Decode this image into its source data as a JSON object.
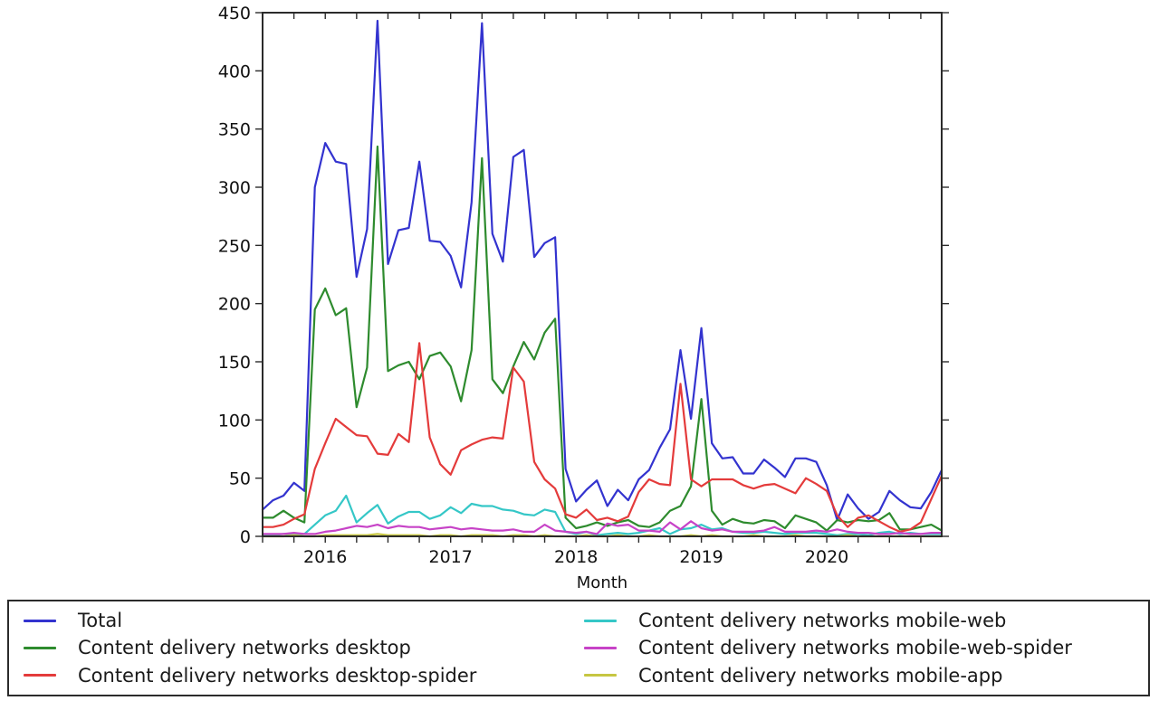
{
  "figure": {
    "background": "#ffffff",
    "spine_color": "#2b2b2b",
    "text_color": "#1a1a1a"
  },
  "chart_data": {
    "type": "line",
    "title": "",
    "xlabel": "Month",
    "ylabel": "",
    "ylim": [
      0,
      450
    ],
    "yticks": [
      0,
      50,
      100,
      150,
      200,
      250,
      300,
      350,
      400,
      450
    ],
    "grid": false,
    "legend_position": "bottom",
    "xticks": [
      {
        "label": "2016",
        "month_index": 6
      },
      {
        "label": "2017",
        "month_index": 18
      },
      {
        "label": "2018",
        "month_index": 30
      },
      {
        "label": "2019",
        "month_index": 42
      },
      {
        "label": "2020",
        "month_index": 54
      }
    ],
    "months": [
      "2015-07",
      "2015-08",
      "2015-09",
      "2015-10",
      "2015-11",
      "2015-12",
      "2016-01",
      "2016-02",
      "2016-03",
      "2016-04",
      "2016-05",
      "2016-06",
      "2016-07",
      "2016-08",
      "2016-09",
      "2016-10",
      "2016-11",
      "2016-12",
      "2017-01",
      "2017-02",
      "2017-03",
      "2017-04",
      "2017-05",
      "2017-06",
      "2017-07",
      "2017-08",
      "2017-09",
      "2017-10",
      "2017-11",
      "2017-12",
      "2018-01",
      "2018-02",
      "2018-03",
      "2018-04",
      "2018-05",
      "2018-06",
      "2018-07",
      "2018-08",
      "2018-09",
      "2018-10",
      "2018-11",
      "2018-12",
      "2019-01",
      "2019-02",
      "2019-03",
      "2019-04",
      "2019-05",
      "2019-06",
      "2019-07",
      "2019-08",
      "2019-09",
      "2019-10",
      "2019-11",
      "2019-12",
      "2020-01",
      "2020-02",
      "2020-03",
      "2020-04",
      "2020-05",
      "2020-06",
      "2020-07",
      "2020-08",
      "2020-09",
      "2020-10",
      "2020-11",
      "2020-12"
    ],
    "series": [
      {
        "name": "Total",
        "color": "#3333cf",
        "values": [
          23,
          31,
          35,
          46,
          39,
          300,
          338,
          322,
          320,
          223,
          264,
          443,
          234,
          263,
          265,
          322,
          254,
          253,
          241,
          214,
          287,
          441,
          260,
          236,
          326,
          332,
          240,
          252,
          257,
          58,
          30,
          40,
          48,
          26,
          40,
          31,
          49,
          57,
          76,
          92,
          160,
          101,
          179,
          80,
          67,
          68,
          54,
          54,
          66,
          59,
          51,
          67,
          67,
          64,
          44,
          14,
          36,
          24,
          15,
          21,
          39,
          31,
          25,
          24,
          38,
          57
        ]
      },
      {
        "name": "Content delivery networks desktop",
        "color": "#2e8b2e",
        "values": [
          16,
          16,
          22,
          16,
          12,
          195,
          213,
          190,
          196,
          111,
          145,
          335,
          142,
          147,
          150,
          135,
          155,
          158,
          146,
          116,
          160,
          325,
          135,
          123,
          146,
          167,
          152,
          175,
          187,
          16,
          7,
          9,
          12,
          9,
          12,
          14,
          9,
          8,
          12,
          22,
          26,
          43,
          118,
          22,
          10,
          15,
          12,
          11,
          14,
          13,
          7,
          18,
          15,
          12,
          5,
          14,
          12,
          14,
          13,
          14,
          20,
          6,
          6,
          8,
          10,
          5
        ]
      },
      {
        "name": "Content delivery networks desktop-spider",
        "color": "#e43b3b",
        "values": [
          8,
          8,
          10,
          15,
          19,
          58,
          80,
          101,
          94,
          87,
          86,
          71,
          70,
          88,
          81,
          166,
          85,
          62,
          53,
          74,
          79,
          83,
          85,
          84,
          145,
          133,
          64,
          49,
          41,
          19,
          16,
          23,
          14,
          16,
          13,
          17,
          38,
          49,
          45,
          44,
          131,
          49,
          43,
          49,
          49,
          49,
          44,
          41,
          44,
          45,
          41,
          37,
          50,
          45,
          39,
          18,
          8,
          16,
          18,
          13,
          8,
          4,
          6,
          12,
          32,
          52
        ]
      },
      {
        "name": "Content delivery networks mobile-web",
        "color": "#35c7c7",
        "values": [
          1,
          1,
          2,
          2,
          2,
          10,
          18,
          22,
          35,
          12,
          20,
          27,
          11,
          17,
          21,
          21,
          15,
          18,
          25,
          20,
          28,
          26,
          26,
          23,
          22,
          19,
          18,
          23,
          21,
          4,
          2,
          4,
          1,
          2,
          3,
          2,
          3,
          5,
          7,
          2,
          6,
          7,
          10,
          6,
          7,
          4,
          3,
          3,
          4,
          3,
          2,
          3,
          3,
          3,
          2,
          1,
          2,
          2,
          1,
          3,
          4,
          2,
          3,
          2,
          2,
          2
        ]
      },
      {
        "name": "Content delivery networks mobile-web-spider",
        "color": "#c743c7",
        "values": [
          2,
          2,
          2,
          3,
          2,
          2,
          4,
          5,
          7,
          9,
          8,
          10,
          7,
          9,
          8,
          8,
          6,
          7,
          8,
          6,
          7,
          6,
          5,
          5,
          6,
          4,
          4,
          10,
          5,
          4,
          3,
          4,
          2,
          11,
          9,
          10,
          5,
          5,
          4,
          12,
          6,
          13,
          7,
          5,
          6,
          4,
          4,
          4,
          5,
          8,
          4,
          4,
          4,
          5,
          4,
          6,
          4,
          3,
          3,
          2,
          2,
          3,
          2,
          2,
          3,
          3
        ]
      },
      {
        "name": "Content delivery networks mobile-app",
        "color": "#c6c642",
        "values": [
          0,
          0,
          0,
          1,
          0,
          0,
          1,
          1,
          1,
          1,
          1,
          2,
          1,
          1,
          1,
          1,
          0,
          1,
          1,
          0,
          1,
          1,
          1,
          0,
          1,
          1,
          0,
          1,
          0,
          0,
          0,
          1,
          0,
          0,
          1,
          0,
          0,
          1,
          0,
          0,
          0,
          1,
          0,
          1,
          0,
          0,
          0,
          1,
          0,
          0,
          0,
          1,
          0,
          0,
          0,
          0,
          1,
          0,
          0,
          0,
          0,
          0,
          0,
          0,
          0,
          0
        ]
      }
    ]
  }
}
